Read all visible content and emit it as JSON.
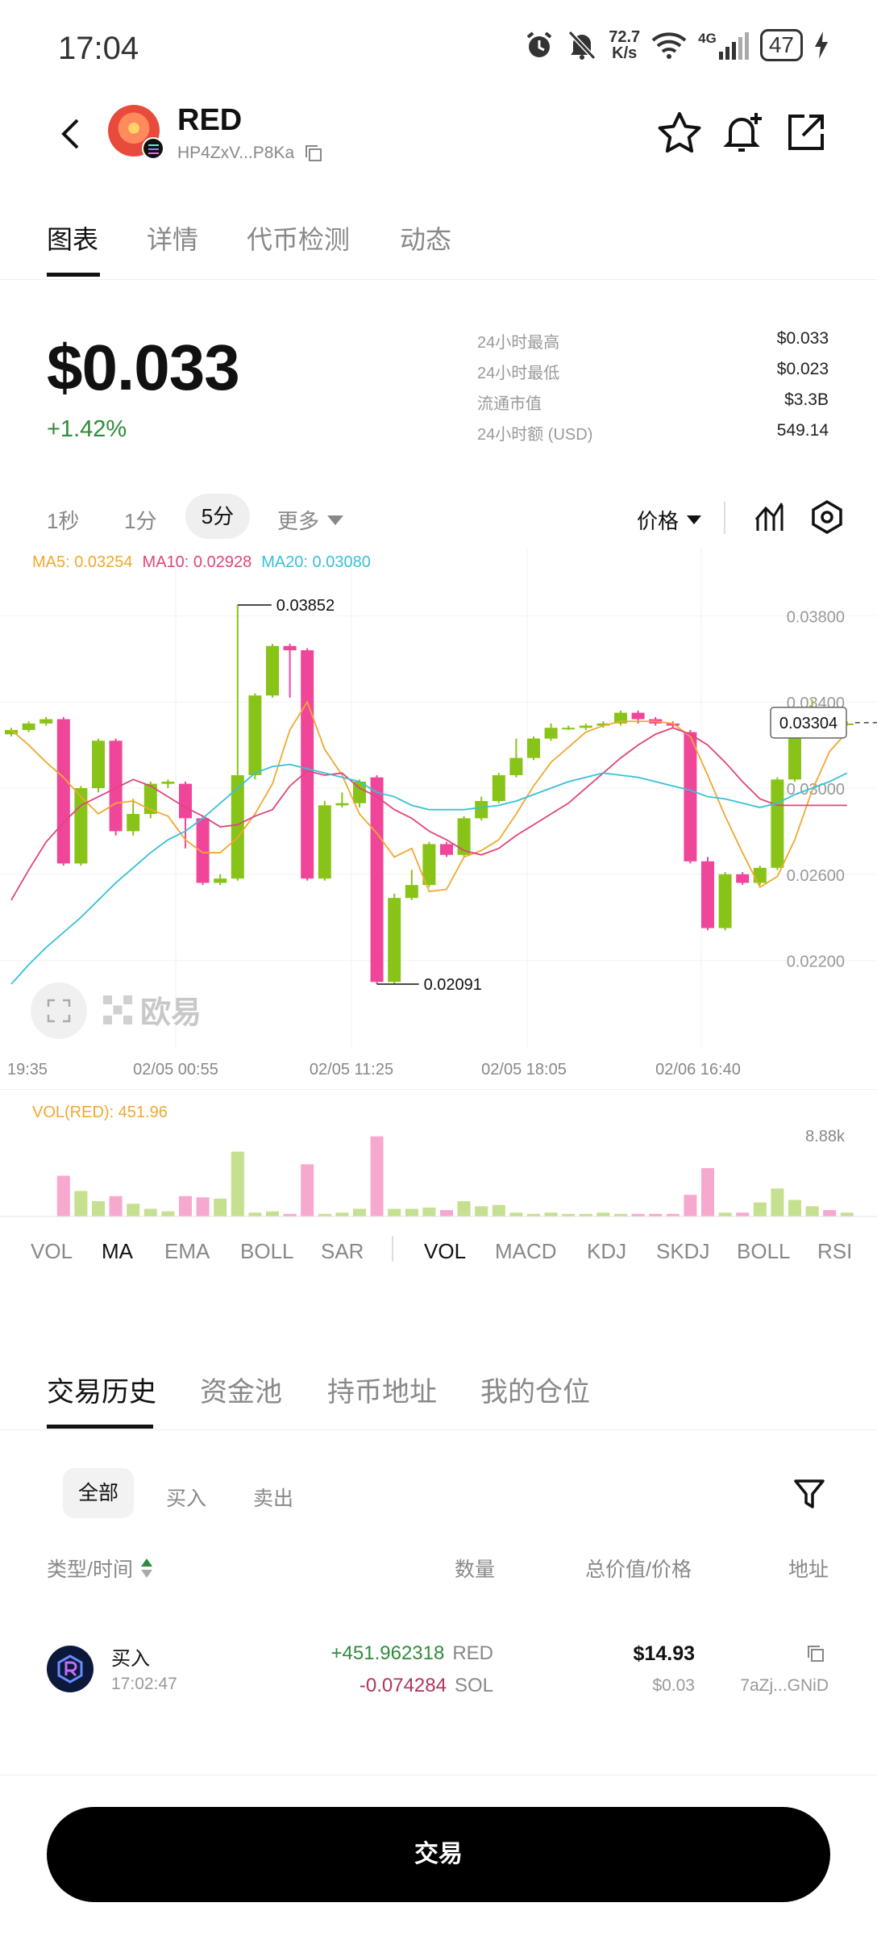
{
  "status": {
    "time": "17:04",
    "net_speed_value": "72.7",
    "net_speed_unit": "K/s",
    "network": "4G",
    "battery": "47"
  },
  "header": {
    "name": "RED",
    "address": "HP4ZxV...P8Ka"
  },
  "tabs": [
    "图表",
    "详情",
    "代币检测",
    "动态"
  ],
  "price": {
    "value": "$0.033",
    "change": "+1.42%"
  },
  "stats": [
    {
      "label": "24小时最高",
      "value": "$0.033"
    },
    {
      "label": "24小时最低",
      "value": "$0.023"
    },
    {
      "label": "流通市值",
      "value": "$3.3B"
    },
    {
      "label": "24小时额 (USD)",
      "value": "549.14"
    }
  ],
  "timeframes": [
    "1秒",
    "1分",
    "5分",
    "更多"
  ],
  "price_selector": "价格",
  "chart": {
    "ma5": "MA5: 0.03254",
    "ma10": "MA10: 0.02928",
    "ma20": "MA20: 0.03080",
    "y_ticks": [
      "0.03800",
      "0.03400",
      "0.03000",
      "0.02600",
      "0.02200"
    ],
    "x_ticks": [
      "19:35",
      "02/05 00:55",
      "02/05 11:25",
      "02/05 18:05",
      "02/06 16:40"
    ],
    "high_label": "0.03852",
    "low_label": "0.02091",
    "current_price": "0.03304",
    "watermark": "欧易",
    "vol_label": "VOL(RED): 451.96",
    "vol_max": "8.88k",
    "colors": {
      "up": "#88c417",
      "down": "#f0469a",
      "ma5": "#f0a830",
      "ma10": "#e0457b",
      "ma20": "#38c0d8"
    }
  },
  "chart_data": {
    "type": "candlestick",
    "ylim": [
      0.0194,
      0.04
    ],
    "x_ticks": [
      "19:35",
      "02/05 00:55",
      "02/05 11:25",
      "02/05 18:05",
      "02/06 16:40"
    ],
    "candles": [
      {
        "o": 0.0325,
        "c": 0.0327,
        "h": 0.0328,
        "l": 0.0324
      },
      {
        "o": 0.0327,
        "c": 0.033,
        "h": 0.0331,
        "l": 0.0326
      },
      {
        "o": 0.033,
        "c": 0.0332,
        "h": 0.0333,
        "l": 0.0329
      },
      {
        "o": 0.0332,
        "c": 0.0265,
        "h": 0.0333,
        "l": 0.0264
      },
      {
        "o": 0.0265,
        "c": 0.03,
        "h": 0.0301,
        "l": 0.0264
      },
      {
        "o": 0.03,
        "c": 0.0322,
        "h": 0.0323,
        "l": 0.0298
      },
      {
        "o": 0.0322,
        "c": 0.028,
        "h": 0.0323,
        "l": 0.0278
      },
      {
        "o": 0.028,
        "c": 0.0288,
        "h": 0.0295,
        "l": 0.0278
      },
      {
        "o": 0.0288,
        "c": 0.0302,
        "h": 0.0303,
        "l": 0.0286
      },
      {
        "o": 0.0302,
        "c": 0.0303,
        "h": 0.0304,
        "l": 0.03
      },
      {
        "o": 0.0302,
        "c": 0.0286,
        "h": 0.0303,
        "l": 0.0272
      },
      {
        "o": 0.0286,
        "c": 0.0256,
        "h": 0.0287,
        "l": 0.0255
      },
      {
        "o": 0.0256,
        "c": 0.0258,
        "h": 0.026,
        "l": 0.0255
      },
      {
        "o": 0.0258,
        "c": 0.0306,
        "h": 0.0385,
        "l": 0.0257
      },
      {
        "o": 0.0306,
        "c": 0.0343,
        "h": 0.0344,
        "l": 0.0304
      },
      {
        "o": 0.0343,
        "c": 0.0366,
        "h": 0.0367,
        "l": 0.0342
      },
      {
        "o": 0.0366,
        "c": 0.0364,
        "h": 0.0367,
        "l": 0.0342
      },
      {
        "o": 0.0364,
        "c": 0.0258,
        "h": 0.0365,
        "l": 0.0257
      },
      {
        "o": 0.0258,
        "c": 0.0292,
        "h": 0.0294,
        "l": 0.0257
      },
      {
        "o": 0.0292,
        "c": 0.0293,
        "h": 0.0298,
        "l": 0.0291
      },
      {
        "o": 0.0293,
        "c": 0.0303,
        "h": 0.0304,
        "l": 0.0291
      },
      {
        "o": 0.0305,
        "c": 0.021,
        "h": 0.0306,
        "l": 0.0209
      },
      {
        "o": 0.021,
        "c": 0.0249,
        "h": 0.0251,
        "l": 0.0209
      },
      {
        "o": 0.0249,
        "c": 0.0255,
        "h": 0.0262,
        "l": 0.0248
      },
      {
        "o": 0.0255,
        "c": 0.0274,
        "h": 0.0275,
        "l": 0.0254
      },
      {
        "o": 0.0274,
        "c": 0.0269,
        "h": 0.0275,
        "l": 0.0268
      },
      {
        "o": 0.0269,
        "c": 0.0286,
        "h": 0.0287,
        "l": 0.0268
      },
      {
        "o": 0.0286,
        "c": 0.0294,
        "h": 0.0296,
        "l": 0.0285
      },
      {
        "o": 0.0294,
        "c": 0.0306,
        "h": 0.0307,
        "l": 0.0293
      },
      {
        "o": 0.0306,
        "c": 0.0314,
        "h": 0.0323,
        "l": 0.0305
      },
      {
        "o": 0.0314,
        "c": 0.0323,
        "h": 0.0324,
        "l": 0.0313
      },
      {
        "o": 0.0323,
        "c": 0.0328,
        "h": 0.033,
        "l": 0.0322
      },
      {
        "o": 0.0328,
        "c": 0.0328,
        "h": 0.0329,
        "l": 0.0327
      },
      {
        "o": 0.0328,
        "c": 0.0329,
        "h": 0.033,
        "l": 0.0327
      },
      {
        "o": 0.0329,
        "c": 0.033,
        "h": 0.0331,
        "l": 0.0328
      },
      {
        "o": 0.033,
        "c": 0.0335,
        "h": 0.0336,
        "l": 0.0329
      },
      {
        "o": 0.0335,
        "c": 0.0332,
        "h": 0.0336,
        "l": 0.033
      },
      {
        "o": 0.0332,
        "c": 0.033,
        "h": 0.0333,
        "l": 0.0329
      },
      {
        "o": 0.033,
        "c": 0.0329,
        "h": 0.0331,
        "l": 0.0328
      },
      {
        "o": 0.0326,
        "c": 0.0266,
        "h": 0.0327,
        "l": 0.0265
      },
      {
        "o": 0.0266,
        "c": 0.0235,
        "h": 0.0268,
        "l": 0.0234
      },
      {
        "o": 0.0235,
        "c": 0.026,
        "h": 0.0261,
        "l": 0.0234
      },
      {
        "o": 0.026,
        "c": 0.0256,
        "h": 0.0261,
        "l": 0.0255
      },
      {
        "o": 0.0256,
        "c": 0.0263,
        "h": 0.0264,
        "l": 0.0255
      },
      {
        "o": 0.0263,
        "c": 0.0304,
        "h": 0.0305,
        "l": 0.0262
      },
      {
        "o": 0.0304,
        "c": 0.0335,
        "h": 0.0336,
        "l": 0.0303
      },
      {
        "o": 0.0335,
        "c": 0.0336,
        "h": 0.0341,
        "l": 0.0334
      },
      {
        "o": 0.0336,
        "c": 0.033,
        "h": 0.0337,
        "l": 0.0329
      },
      {
        "o": 0.033,
        "c": 0.033,
        "h": 0.0331,
        "l": 0.0329
      }
    ],
    "volumes": [
      0,
      0,
      0,
      3200,
      2000,
      1200,
      1600,
      1000,
      600,
      400,
      1600,
      1500,
      1400,
      5100,
      300,
      400,
      200,
      4100,
      200,
      300,
      600,
      6300,
      600,
      600,
      700,
      500,
      1200,
      800,
      900,
      300,
      200,
      300,
      200,
      200,
      300,
      200,
      200,
      200,
      200,
      1700,
      3800,
      300,
      300,
      1100,
      2200,
      1300,
      800,
      500,
      300
    ],
    "ma5": [
      0.0327,
      0.032,
      0.0312,
      0.0305,
      0.0296,
      0.0288,
      0.0293,
      0.0294,
      0.029,
      0.0287,
      0.0276,
      0.027,
      0.027,
      0.0277,
      0.0288,
      0.0302,
      0.0327,
      0.034,
      0.0318,
      0.0306,
      0.0288,
      0.0279,
      0.0268,
      0.0272,
      0.0252,
      0.0253,
      0.0268,
      0.0271,
      0.0276,
      0.0288,
      0.0301,
      0.0312,
      0.0319,
      0.0326,
      0.0329,
      0.0331,
      0.0331,
      0.0331,
      0.033,
      0.0324,
      0.0306,
      0.0287,
      0.027,
      0.0254,
      0.0259,
      0.0276,
      0.0299,
      0.0317,
      0.0326
    ],
    "ma10": [
      0.0248,
      0.0262,
      0.0275,
      0.0284,
      0.0292,
      0.0296,
      0.03,
      0.0304,
      0.0301,
      0.0296,
      0.0291,
      0.0287,
      0.0282,
      0.0283,
      0.0287,
      0.029,
      0.0301,
      0.0308,
      0.0306,
      0.0307,
      0.03,
      0.0296,
      0.029,
      0.0286,
      0.028,
      0.0276,
      0.0271,
      0.0269,
      0.0272,
      0.0278,
      0.0283,
      0.0288,
      0.0293,
      0.03,
      0.0307,
      0.0314,
      0.032,
      0.0325,
      0.0328,
      0.0325,
      0.032,
      0.0312,
      0.0303,
      0.0295,
      0.0292,
      0.0292,
      0.0292,
      0.0292,
      0.0292
    ],
    "ma20": [
      0.0209,
      0.0218,
      0.0226,
      0.0233,
      0.024,
      0.0248,
      0.0256,
      0.0263,
      0.027,
      0.0276,
      0.028,
      0.0286,
      0.0293,
      0.03,
      0.0307,
      0.031,
      0.0311,
      0.0309,
      0.0307,
      0.0305,
      0.0303,
      0.0298,
      0.0296,
      0.0292,
      0.029,
      0.029,
      0.029,
      0.0291,
      0.0292,
      0.0294,
      0.0297,
      0.03,
      0.0303,
      0.0305,
      0.0307,
      0.0306,
      0.0305,
      0.0303,
      0.0301,
      0.0299,
      0.0296,
      0.0295,
      0.0293,
      0.0291,
      0.0293,
      0.0297,
      0.03,
      0.0303,
      0.0307
    ]
  },
  "indicators_left": [
    "VOL",
    "MA",
    "EMA",
    "BOLL",
    "SAR"
  ],
  "indicators_right": [
    "VOL",
    "MACD",
    "KDJ",
    "SKDJ",
    "BOLL",
    "RSI"
  ],
  "trade_tabs": [
    "交易历史",
    "资金池",
    "持币地址",
    "我的仓位"
  ],
  "filters": [
    "全部",
    "买入",
    "卖出"
  ],
  "columns": {
    "type_time": "类型/时间",
    "amount": "数量",
    "total": "总价值/价格",
    "address": "地址"
  },
  "trades": [
    {
      "type": "买入",
      "time": "17:02:47",
      "amount1": "+451.962318",
      "token1": "RED",
      "amount2": "-0.074284",
      "token2": "SOL",
      "total": "$14.93",
      "price": "$0.03",
      "address": "7aZj...GNiD"
    }
  ],
  "trade_button": "交易"
}
